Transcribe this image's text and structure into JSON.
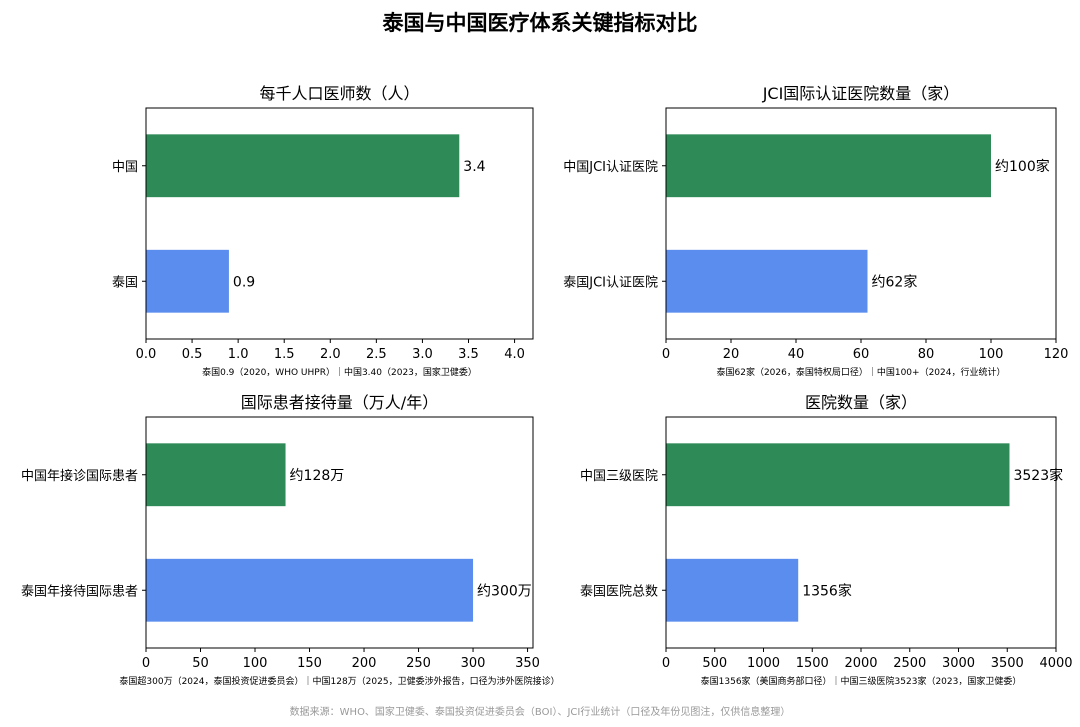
{
  "title": "泰国与中国医疗体系关键指标对比",
  "source_note": "数据来源：WHO、国家卫健委、泰国投资促进委员会（BOI）、JCI行业统计（口径及年份见图注，仅供信息整理）",
  "colors": {
    "china": "#2e8b57",
    "thailand": "#5b8def"
  },
  "chart_data": [
    {
      "type": "bar",
      "orientation": "horizontal",
      "title": "每千人口医师数（人）",
      "categories": [
        "中国",
        "泰国"
      ],
      "values": [
        3.4,
        0.9
      ],
      "value_labels": [
        "3.4",
        "0.9"
      ],
      "xlim": [
        0,
        4.2
      ],
      "xticks": [
        "0.0",
        "0.5",
        "1.0",
        "1.5",
        "2.0",
        "2.5",
        "3.0",
        "3.5",
        "4.0"
      ],
      "note": "泰国0.9（2020，WHO UHPR）｜中国3.40（2023，国家卫健委）"
    },
    {
      "type": "bar",
      "orientation": "horizontal",
      "title": "JCI国际认证医院数量（家）",
      "categories": [
        "中国JCI认证医院",
        "泰国JCI认证医院"
      ],
      "values": [
        100,
        62
      ],
      "value_labels": [
        "约100家",
        "约62家"
      ],
      "xlim": [
        0,
        120
      ],
      "xticks": [
        "0",
        "20",
        "40",
        "60",
        "80",
        "100",
        "120"
      ],
      "note": "泰国62家（2026，泰国特权局口径）｜中国100+（2024，行业统计）"
    },
    {
      "type": "bar",
      "orientation": "horizontal",
      "title": "国际患者接待量（万人/年）",
      "categories": [
        "中国年接诊国际患者",
        "泰国年接待国际患者"
      ],
      "values": [
        128,
        300
      ],
      "value_labels": [
        "约128万",
        "约300万"
      ],
      "xlim": [
        0,
        355
      ],
      "xticks": [
        "0",
        "50",
        "100",
        "150",
        "200",
        "250",
        "300",
        "350"
      ],
      "note": "泰国超300万（2024，泰国投资促进委员会）｜中国128万（2025，卫健委涉外报告，口径为涉外医院接诊）"
    },
    {
      "type": "bar",
      "orientation": "horizontal",
      "title": "医院数量（家）",
      "categories": [
        "中国三级医院",
        "泰国医院总数"
      ],
      "values": [
        3523,
        1356
      ],
      "value_labels": [
        "3523家",
        "1356家"
      ],
      "xlim": [
        0,
        4000
      ],
      "xticks": [
        "0",
        "500",
        "1000",
        "1500",
        "2000",
        "2500",
        "3000",
        "3500",
        "4000"
      ],
      "note": "泰国1356家（美国商务部口径）｜中国三级医院3523家（2023，国家卫健委）"
    }
  ]
}
